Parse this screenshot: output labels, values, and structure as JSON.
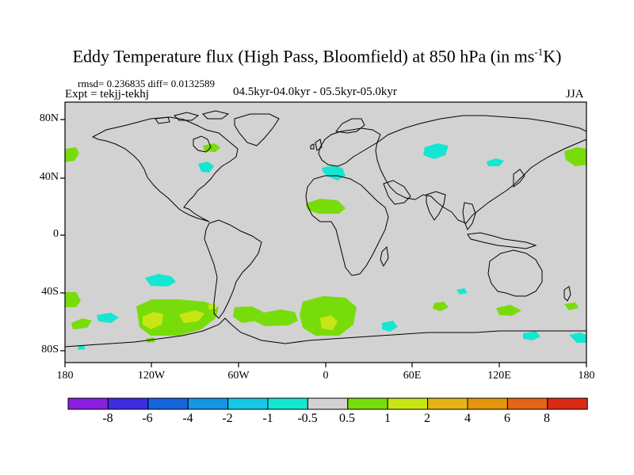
{
  "title": {
    "text": "Eddy Temperature flux (High Pass, Bloomfield) at 850 hPa (in ms",
    "sup": "-1",
    "unit_tail": "K)"
  },
  "stats": "rmsd= 0.236835 diff= 0.0132589",
  "expt": "Expt = tekjj-tekhj",
  "period": "04.5kyr-04.0kyr - 05.5kyr-05.0kyr",
  "season": "JJA",
  "lat_labels": [
    "80N",
    "40N",
    "0",
    "40S",
    "80S"
  ],
  "lon_labels": [
    "180",
    "120W",
    "60W",
    "0",
    "60E",
    "120E",
    "180"
  ],
  "colorbar": {
    "labels": [
      "-8",
      "-6",
      "-4",
      "-2",
      "-1",
      "-0.5",
      "0.5",
      "1",
      "2",
      "4",
      "6",
      "8"
    ],
    "colors": [
      "#8a1ee0",
      "#3c2ee0",
      "#1464dc",
      "#1496e6",
      "#14c8e6",
      "#14e6d2",
      "#d2d2d2",
      "#78dc0a",
      "#c8e614",
      "#e6b414",
      "#e6960a",
      "#e66414",
      "#dc2a14"
    ]
  },
  "map": {
    "background_color": "#d2d2d2",
    "positive_small_color": "#78dc0a",
    "positive_mid_color": "#c8e614",
    "negative_small_color": "#14e6d2"
  }
}
